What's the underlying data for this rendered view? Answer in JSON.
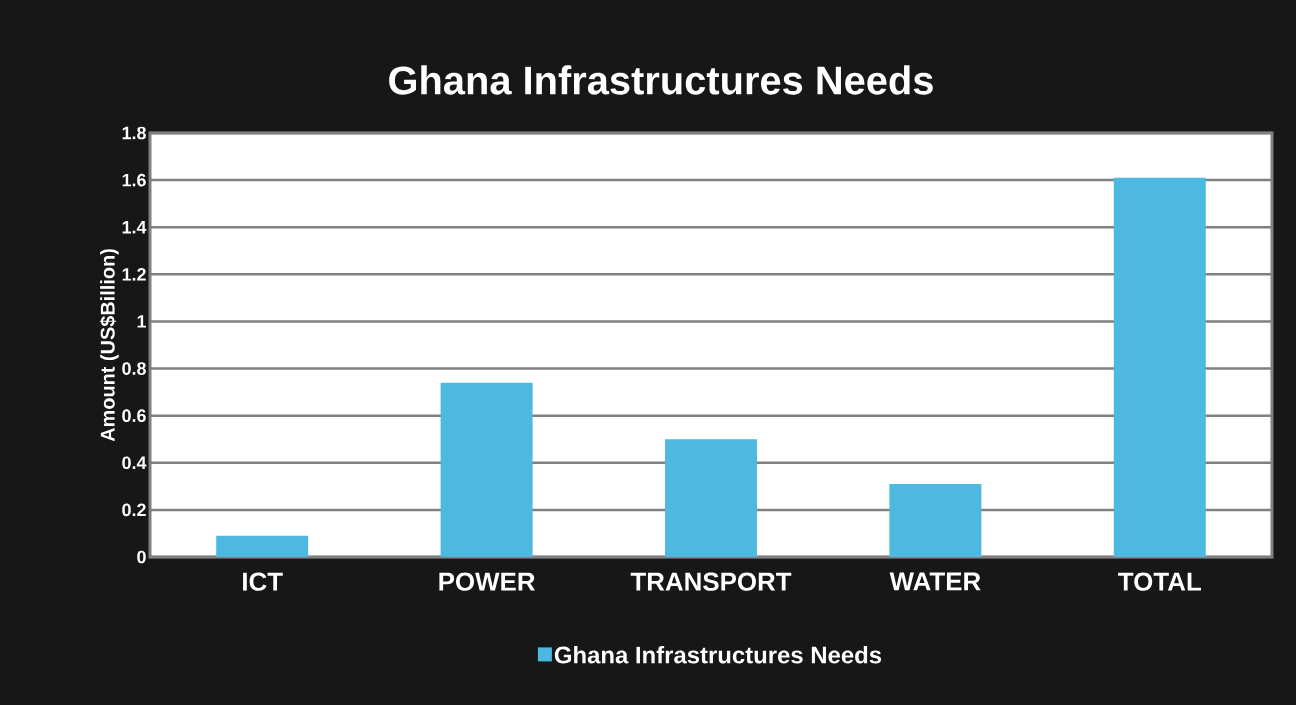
{
  "chart_data": {
    "type": "bar",
    "title": "Ghana Infrastructures Needs",
    "ylabel": "Amount (US$Billion)",
    "categories": [
      "ICT",
      "POWER",
      "TRANSPORT",
      "WATER",
      "TOTAL"
    ],
    "series": [
      {
        "name": "Ghana Infrastructures Needs",
        "color": "#4db8e0",
        "values": [
          0.09,
          0.74,
          0.5,
          0.31,
          1.61
        ]
      }
    ],
    "ylim": [
      0,
      1.8
    ],
    "yticks": [
      0,
      0.2,
      0.4,
      0.6,
      0.8,
      1,
      1.2,
      1.4,
      1.6,
      1.8
    ],
    "grid": "y",
    "legend": "bottom"
  }
}
